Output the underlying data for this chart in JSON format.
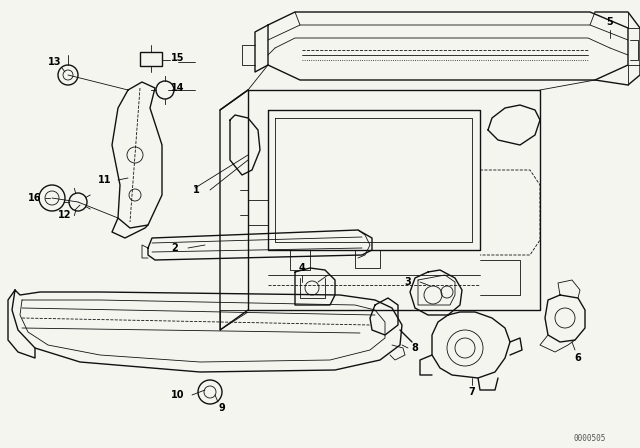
{
  "bg_color": "#f5f5f0",
  "line_color": "#111111",
  "fig_width": 6.4,
  "fig_height": 4.48,
  "dpi": 100,
  "watermark": "0000505"
}
